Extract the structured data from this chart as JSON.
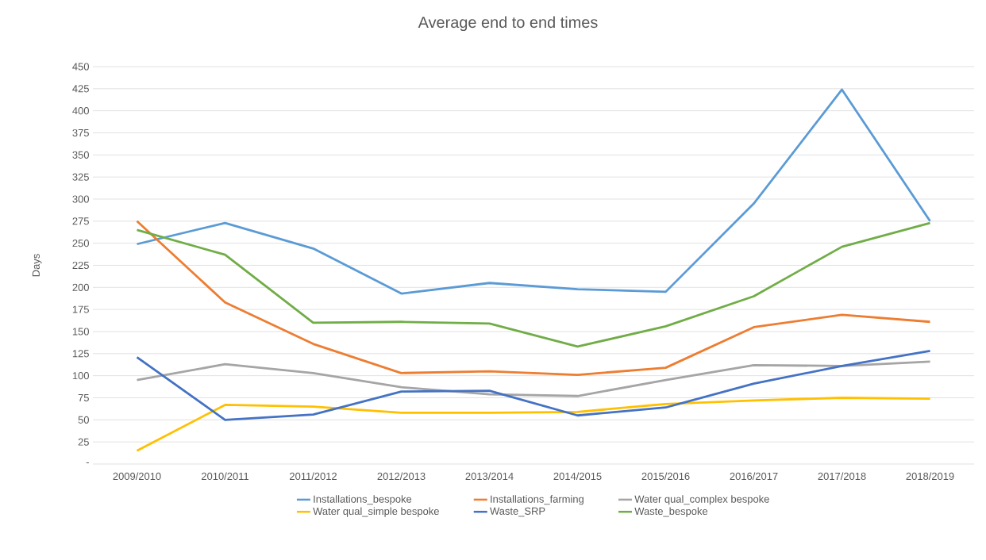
{
  "chart_data": {
    "type": "line",
    "title": "Average end to end times",
    "ylabel": "Days",
    "categories": [
      "2009/2010",
      "2010/2011",
      "2011/2012",
      "2012/2013",
      "2013/2014",
      "2014/2015",
      "2015/2016",
      "2016/2017",
      "2017/2018",
      "2018/2019"
    ],
    "series": [
      {
        "name": "Installations_bespoke",
        "color": "#5b9bd5",
        "values": [
          249,
          273,
          244,
          193,
          205,
          198,
          195,
          295,
          424,
          275
        ]
      },
      {
        "name": "Installations_farming",
        "color": "#ed7d31",
        "values": [
          275,
          183,
          136,
          103,
          105,
          101,
          109,
          155,
          169,
          161
        ]
      },
      {
        "name": "Water qual_complex bespoke",
        "color": "#a5a5a5",
        "values": [
          95,
          113,
          103,
          87,
          79,
          77,
          95,
          112,
          111,
          116
        ]
      },
      {
        "name": "Water qual_simple bespoke",
        "color": "#ffc000",
        "values": [
          15,
          67,
          65,
          58,
          58,
          59,
          68,
          72,
          75,
          74
        ]
      },
      {
        "name": "Waste_SRP",
        "color": "#4472c4",
        "values": [
          121,
          50,
          56,
          82,
          83,
          55,
          64,
          91,
          111,
          128
        ]
      },
      {
        "name": "Waste_bespoke",
        "color": "#70ad47",
        "values": [
          265,
          237,
          160,
          161,
          159,
          133,
          156,
          190,
          246,
          273
        ]
      }
    ],
    "ylim": [
      0,
      450
    ],
    "yticks": [
      {
        "value": 0,
        "label": "-"
      },
      25,
      50,
      75,
      100,
      125,
      150,
      175,
      200,
      225,
      250,
      275,
      300,
      325,
      350,
      375,
      400,
      425,
      450
    ],
    "grid": "y",
    "legend": "bottom",
    "marker": "none",
    "line_style": "solid"
  }
}
